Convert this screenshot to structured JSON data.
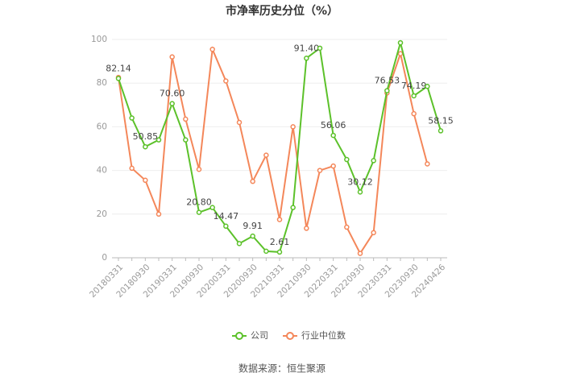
{
  "chart_data": {
    "type": "line",
    "title": "市净率历史分位（%）",
    "source": "数据来源：恒生聚源",
    "categories": [
      "20180331",
      null,
      "20180930",
      null,
      "20190331",
      null,
      "20190930",
      null,
      "20200331",
      null,
      "20200930",
      null,
      "20210331",
      null,
      "20210930",
      null,
      "20220331",
      null,
      "20220930",
      null,
      "20230331",
      null,
      "20230930",
      null,
      "20240426"
    ],
    "series": [
      {
        "name": "公司",
        "color": "#5cc12a",
        "values": [
          82.14,
          64,
          50.85,
          54,
          70.6,
          54,
          20.8,
          23,
          14.47,
          6.5,
          9.91,
          3,
          2.61,
          23,
          91.4,
          96,
          56.06,
          45,
          30.12,
          44.5,
          76.53,
          98.5,
          74.19,
          78.5,
          58.15
        ],
        "value_labels": [
          "82.14",
          null,
          "50.85",
          null,
          "70.60",
          null,
          "20.80",
          null,
          "14.47",
          null,
          "9.91",
          null,
          "2.61",
          null,
          "91.40",
          null,
          "56.06",
          null,
          "30.12",
          null,
          "76.53",
          null,
          "74.19",
          null,
          "58.15"
        ]
      },
      {
        "name": "行业中位数",
        "color": "#f4875a",
        "values": [
          82.6,
          41,
          35.5,
          20,
          92,
          63.5,
          40.5,
          95.5,
          81,
          62,
          35,
          47,
          17.5,
          60,
          13.5,
          40,
          42,
          14,
          2,
          11.5,
          75.5,
          93.5,
          66,
          43,
          null
        ]
      }
    ],
    "ylim": [
      0,
      100
    ],
    "yticks": [
      0,
      20,
      40,
      60,
      80,
      100
    ],
    "grid": true,
    "legend": "bottom"
  }
}
